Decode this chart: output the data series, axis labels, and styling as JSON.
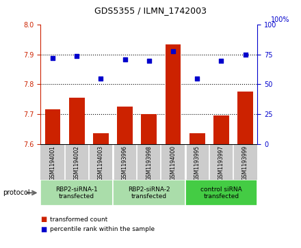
{
  "title": "GDS5355 / ILMN_1742003",
  "samples": [
    "GSM1194001",
    "GSM1194002",
    "GSM1194003",
    "GSM1193996",
    "GSM1193998",
    "GSM1194000",
    "GSM1193995",
    "GSM1193997",
    "GSM1193999"
  ],
  "bar_values": [
    7.715,
    7.755,
    7.635,
    7.725,
    7.7,
    7.935,
    7.635,
    7.695,
    7.775
  ],
  "dot_values": [
    72,
    74,
    55,
    71,
    70,
    78,
    55,
    70,
    75
  ],
  "ylim_left": [
    7.6,
    8.0
  ],
  "ylim_right": [
    0,
    100
  ],
  "yticks_left": [
    7.6,
    7.7,
    7.8,
    7.9,
    8.0
  ],
  "yticks_right": [
    0,
    25,
    50,
    75,
    100
  ],
  "groups": [
    {
      "label": "RBP2-siRNA-1\ntransfected",
      "start": 0,
      "end": 3,
      "color": "#aaddaa"
    },
    {
      "label": "RBP2-siRNA-2\ntransfected",
      "start": 3,
      "end": 6,
      "color": "#aaddaa"
    },
    {
      "label": "control siRNA\ntransfected",
      "start": 6,
      "end": 9,
      "color": "#44cc44"
    }
  ],
  "bar_color": "#cc2200",
  "dot_color": "#0000cc",
  "bar_bottom": 7.6,
  "protocol_label": "protocol",
  "legend_bar_label": "transformed count",
  "legend_dot_label": "percentile rank within the sample",
  "bg_color": "#ffffff",
  "plot_bg_color": "#ffffff",
  "tick_area_bg": "#cccccc",
  "dotgrid_color": "black",
  "dotgrid_style": "dotted",
  "dotgrid_lw": 0.8,
  "dotgrid_values": [
    7.7,
    7.8,
    7.9
  ]
}
